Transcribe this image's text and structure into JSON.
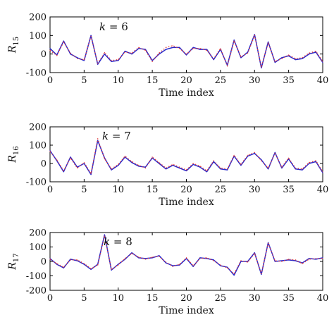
{
  "chart_data": [
    {
      "type": "line",
      "ylabel_main": "R",
      "ylabel_sub": "15",
      "xlabel": "Time index",
      "annotation_var": "k",
      "annotation_rest": " = 6",
      "xlim": [
        0,
        40
      ],
      "ylim": [
        -100,
        200
      ],
      "xticks": [
        0,
        5,
        10,
        15,
        20,
        25,
        30,
        35,
        40
      ],
      "yticks": [
        -100,
        0,
        100,
        200
      ],
      "x": [
        0,
        1,
        2,
        3,
        4,
        5,
        6,
        7,
        8,
        9,
        10,
        11,
        12,
        13,
        14,
        15,
        16,
        17,
        18,
        19,
        20,
        21,
        22,
        23,
        24,
        25,
        26,
        27,
        28,
        29,
        30,
        31,
        32,
        33,
        34,
        35,
        36,
        37,
        38,
        39,
        40
      ],
      "series": [
        {
          "color": "#2a2acb",
          "style": "solid",
          "values": [
            30,
            -5,
            70,
            0,
            -20,
            -35,
            100,
            -55,
            0,
            -40,
            -35,
            15,
            0,
            30,
            25,
            -35,
            0,
            25,
            35,
            35,
            -5,
            35,
            25,
            25,
            -30,
            25,
            -60,
            75,
            -20,
            10,
            105,
            -75,
            65,
            -45,
            -20,
            -10,
            -30,
            -25,
            0,
            10,
            -45
          ]
        },
        {
          "color": "#e23b3b",
          "style": "dotted",
          "values": [
            20,
            -8,
            65,
            5,
            -25,
            -30,
            95,
            -50,
            8,
            -35,
            -30,
            10,
            5,
            35,
            20,
            -40,
            5,
            35,
            45,
            30,
            0,
            30,
            30,
            20,
            -25,
            30,
            -65,
            70,
            -15,
            5,
            100,
            -70,
            60,
            -40,
            -25,
            -5,
            -25,
            -20,
            5,
            15,
            -40
          ]
        }
      ]
    },
    {
      "type": "line",
      "ylabel_main": "R",
      "ylabel_sub": "16",
      "xlabel": "Time index",
      "annotation_var": "k",
      "annotation_rest": " = 7",
      "xlim": [
        0,
        40
      ],
      "ylim": [
        -100,
        200
      ],
      "xticks": [
        0,
        5,
        10,
        15,
        20,
        25,
        30,
        35,
        40
      ],
      "yticks": [
        -100,
        0,
        100,
        200
      ],
      "x": [
        0,
        1,
        2,
        3,
        4,
        5,
        6,
        7,
        8,
        9,
        10,
        11,
        12,
        13,
        14,
        15,
        16,
        17,
        18,
        19,
        20,
        21,
        22,
        23,
        24,
        25,
        26,
        27,
        28,
        29,
        30,
        31,
        32,
        33,
        34,
        35,
        36,
        37,
        38,
        39,
        40
      ],
      "series": [
        {
          "color": "#2a2acb",
          "style": "solid",
          "values": [
            70,
            15,
            -45,
            35,
            -20,
            0,
            -60,
            125,
            30,
            -35,
            -10,
            35,
            5,
            -15,
            -20,
            30,
            0,
            -30,
            -10,
            -25,
            -40,
            -5,
            -20,
            -45,
            10,
            -30,
            -35,
            40,
            -10,
            40,
            55,
            20,
            -30,
            60,
            -25,
            25,
            -30,
            -35,
            0,
            10,
            -50
          ]
        },
        {
          "color": "#e23b3b",
          "style": "dotted",
          "values": [
            65,
            20,
            -40,
            30,
            -25,
            5,
            -55,
            135,
            25,
            -30,
            -5,
            40,
            10,
            -10,
            -25,
            35,
            5,
            -25,
            -5,
            -20,
            -35,
            0,
            -15,
            -40,
            15,
            -25,
            -30,
            45,
            -5,
            45,
            60,
            15,
            -25,
            55,
            -20,
            30,
            -25,
            -30,
            5,
            15,
            -45
          ]
        }
      ]
    },
    {
      "type": "line",
      "ylabel_main": "R",
      "ylabel_sub": "17",
      "xlabel": "Time index",
      "annotation_var": "k",
      "annotation_rest": " = 8",
      "xlim": [
        0,
        40
      ],
      "ylim": [
        -200,
        200
      ],
      "xticks": [
        0,
        5,
        10,
        15,
        20,
        25,
        30,
        35,
        40
      ],
      "yticks": [
        -200,
        -100,
        0,
        100,
        200
      ],
      "x": [
        0,
        1,
        2,
        3,
        4,
        5,
        6,
        7,
        8,
        9,
        10,
        11,
        12,
        13,
        14,
        15,
        16,
        17,
        18,
        19,
        20,
        21,
        22,
        23,
        24,
        25,
        26,
        27,
        28,
        29,
        30,
        31,
        32,
        33,
        34,
        35,
        36,
        37,
        38,
        39,
        40
      ],
      "series": [
        {
          "color": "#2a2acb",
          "style": "solid",
          "values": [
            20,
            -20,
            -45,
            15,
            5,
            -20,
            -55,
            -20,
            185,
            -60,
            -20,
            15,
            60,
            25,
            20,
            25,
            40,
            -10,
            -30,
            -25,
            20,
            -35,
            25,
            20,
            10,
            -30,
            -40,
            -95,
            0,
            0,
            60,
            -90,
            130,
            0,
            5,
            10,
            5,
            -10,
            20,
            15,
            25
          ]
        },
        {
          "color": "#e23b3b",
          "style": "dotted",
          "values": [
            15,
            -15,
            -40,
            10,
            10,
            -15,
            -50,
            -25,
            175,
            -55,
            -25,
            20,
            55,
            30,
            15,
            30,
            35,
            -5,
            -35,
            -20,
            25,
            -30,
            20,
            25,
            5,
            -25,
            -45,
            -85,
            5,
            -5,
            55,
            -85,
            125,
            5,
            0,
            15,
            10,
            -15,
            15,
            20,
            20
          ]
        }
      ]
    }
  ]
}
